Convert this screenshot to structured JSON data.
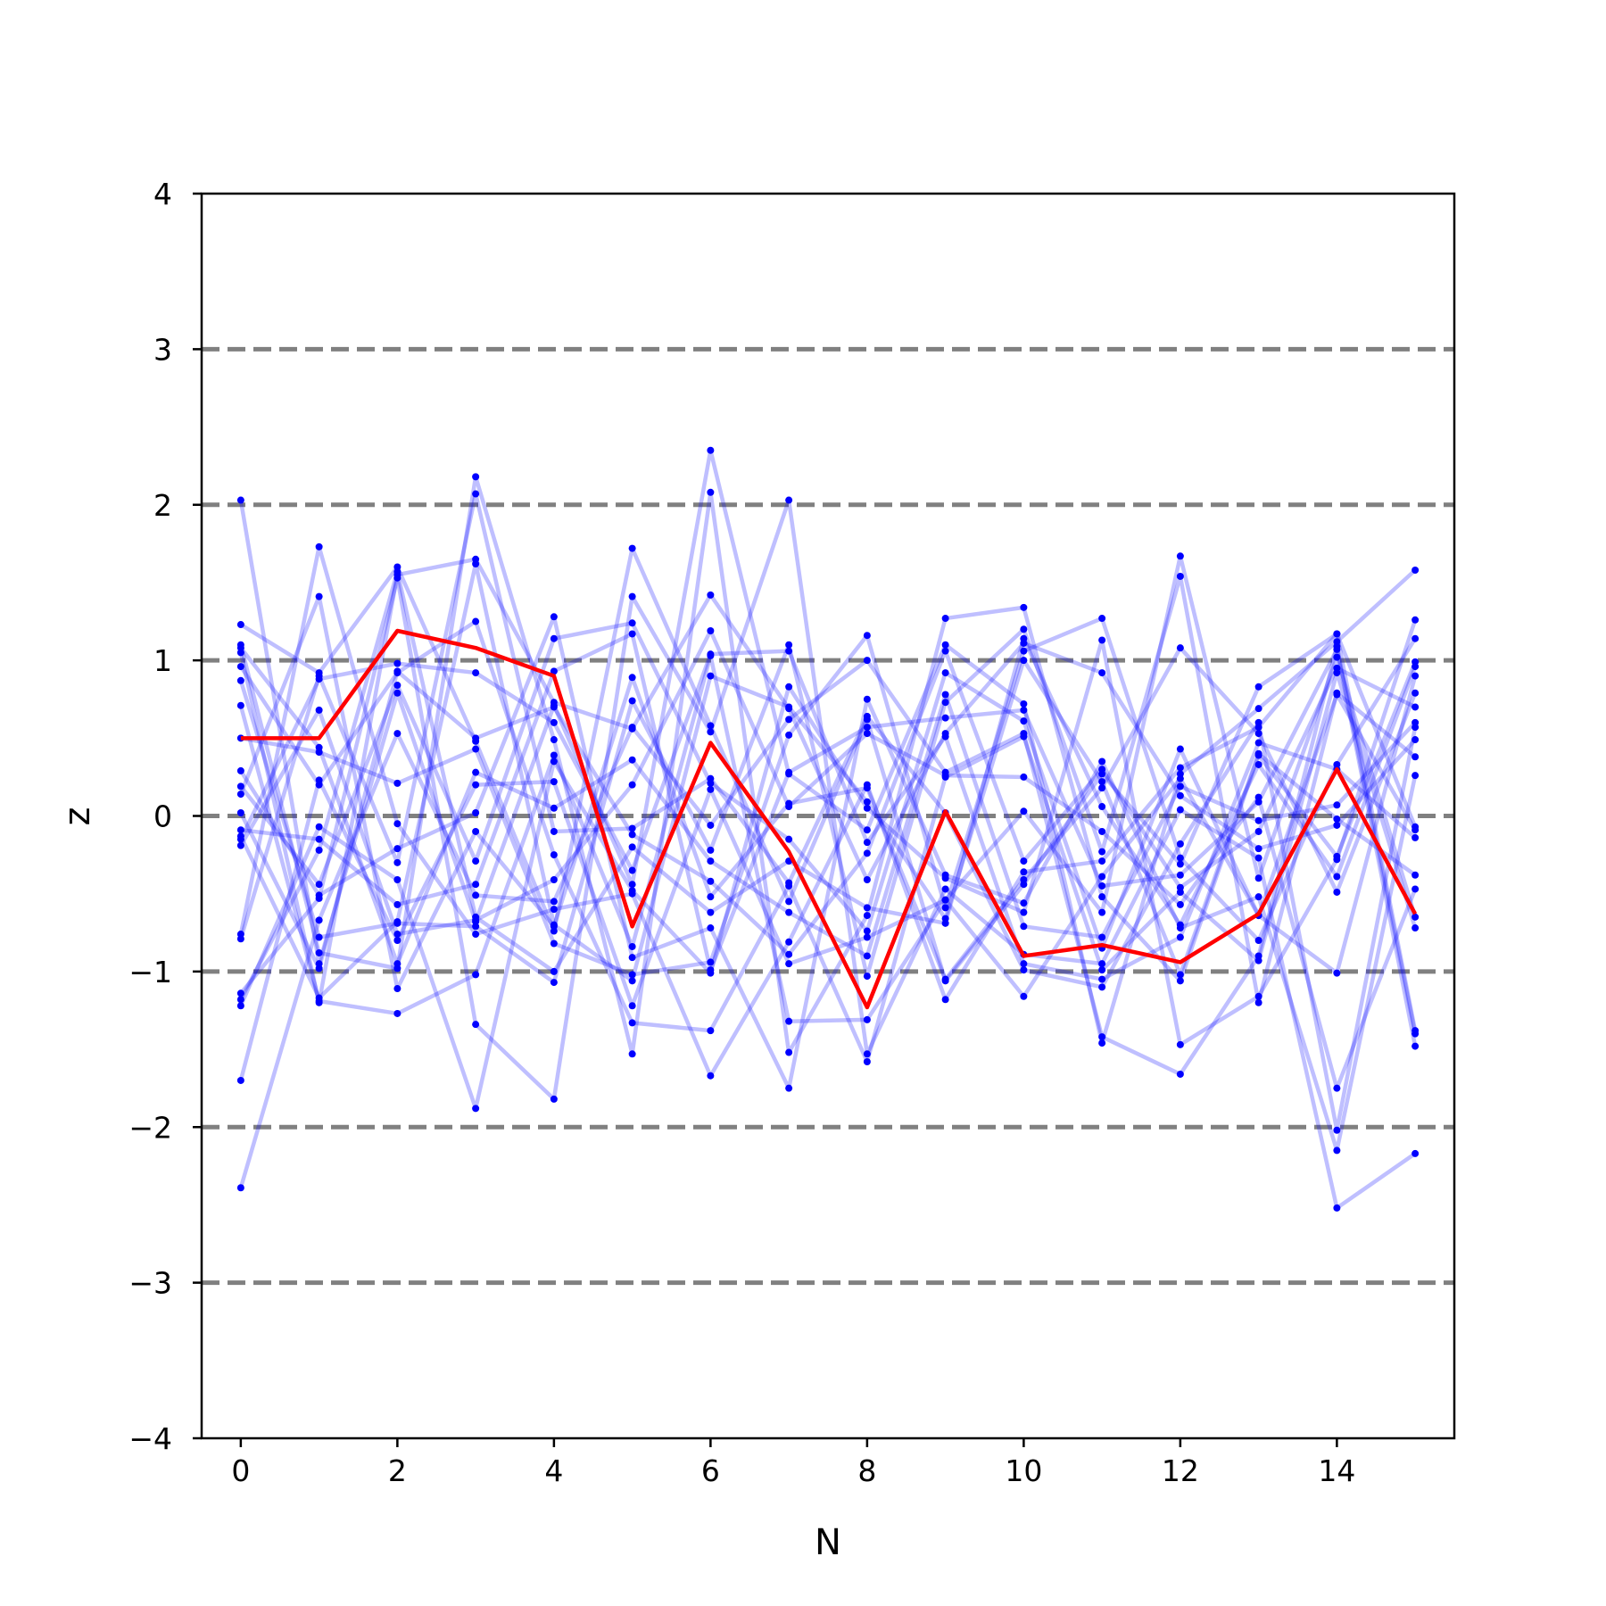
{
  "chart_data": {
    "type": "line",
    "title": "",
    "xlabel": "N",
    "ylabel": "z",
    "xlim": [
      -0.5,
      15.5
    ],
    "ylim": [
      -4,
      4
    ],
    "xticks": [
      0,
      2,
      4,
      6,
      8,
      10,
      12,
      14
    ],
    "xtick_labels": [
      "0",
      "2",
      "4",
      "6",
      "8",
      "10",
      "12",
      "14"
    ],
    "yticks": [
      -4,
      -3,
      -2,
      -1,
      0,
      1,
      2,
      3,
      4
    ],
    "ytick_labels": [
      "−4",
      "−3",
      "−2",
      "−1",
      "0",
      "1",
      "2",
      "3",
      "4"
    ],
    "reference_lines": {
      "y": [
        -3,
        -2,
        -1,
        0,
        1,
        2,
        3
      ],
      "style": "dashed",
      "color": "#808080"
    },
    "grid": false,
    "legend": "none",
    "x": [
      0,
      1,
      2,
      3,
      4,
      5,
      6,
      7,
      8,
      9,
      10,
      11,
      12,
      13,
      14,
      15
    ],
    "highlight_series": {
      "color": "#ff0000",
      "values": [
        0.5,
        0.5,
        1.19,
        1.08,
        0.9,
        -0.71,
        0.47,
        -0.23,
        -1.23,
        0.03,
        -0.9,
        -0.83,
        -0.94,
        -0.63,
        0.3,
        -0.63
      ]
    },
    "sample_series_style": {
      "color": "#0000ff",
      "line_opacity": 0.25,
      "markers": true
    },
    "sample_series": [
      [
        2.03,
        -0.95,
        0.79,
        -0.68,
        0.71,
        -0.44,
        2.35,
        0.27,
        -0.09,
        1.1,
        0.72,
        -1.46,
        0.27,
        0.69,
        1.12,
        1.58
      ],
      [
        1.23,
        0.92,
        1.6,
        0.48,
        -0.74,
        1.72,
        0.58,
        -0.55,
        0.62,
        -1.06,
        -0.44,
        0.27,
        -0.31,
        0.83,
        1.17,
        -0.07
      ],
      [
        1.1,
        -0.88,
        -0.98,
        2.18,
        0.49,
        -1.53,
        2.08,
        -1.52,
        -0.64,
        1.27,
        1.34,
        -0.52,
        -1.06,
        0.39,
        -0.26,
        0.99
      ],
      [
        1.05,
        -1.2,
        1.55,
        1.65,
        0.73,
        0.56,
        1.42,
        0.69,
        -0.41,
        0.53,
        1.11,
        0.92,
        0.13,
        -0.21,
        -0.06,
        0.49
      ],
      [
        0.96,
        0.2,
        0.92,
        1.25,
        -0.25,
        -1.33,
        -1.38,
        -0.45,
        -1.58,
        0.25,
        0.51,
        -0.99,
        -0.49,
        -0.93,
        0.92,
        -0.72
      ],
      [
        0.87,
        -0.78,
        -0.69,
        -0.71,
        -1.07,
        0.74,
        -0.22,
        1.1,
        -1.03,
        0.73,
        1.2,
        -0.23,
        1.54,
        -1.2,
        0.79,
        0.38
      ],
      [
        0.71,
        -1.19,
        -1.27,
        -1.02,
        0.39,
        -0.84,
        1.03,
        -1.32,
        -1.31,
        -0.54,
        0.03,
        -0.62,
        1.67,
        -0.4,
        1.02,
        -0.65
      ],
      [
        0.5,
        0.41,
        0.21,
        0.43,
        -0.82,
        -1.02,
        -0.94,
        0.52,
        1.16,
        -0.59,
        1.06,
        1.27,
        -0.27,
        -0.8,
        0.33,
        1.14
      ],
      [
        0.29,
        -0.51,
        -0.21,
        0.02,
        1.28,
        -0.91,
        -0.72,
        -1.75,
        0.75,
        -0.38,
        -0.56,
        0.35,
        -0.72,
        -0.52,
        -2.15,
        0.26
      ],
      [
        0.19,
        -0.44,
        0.84,
        -0.29,
        1.14,
        1.24,
        0.21,
        -0.15,
        -0.74,
        0.92,
        0.61,
        -0.85,
        0.43,
        -0.64,
        -1.01,
        0.9
      ],
      [
        0.14,
        1.41,
        -1.11,
        -0.1,
        -0.71,
        0.89,
        -0.52,
        0.08,
        0.18,
        -1.05,
        -0.41,
        0.18,
        1.08,
        0.53,
        -0.49,
        0.79
      ],
      [
        -0.09,
        -0.15,
        -0.57,
        -0.44,
        0.93,
        1.17,
        -0.99,
        0.28,
        0.57,
        0.63,
        0.68,
        -0.45,
        -0.38,
        0.09,
        1.07,
        -1.48
      ],
      [
        -0.15,
        0.88,
        0.98,
        0.92,
        0.6,
        -0.35,
        1.04,
        1.06,
        -0.17,
        0.51,
        -0.95,
        -1.05,
        -0.78,
        0.47,
        0.3,
        -0.14
      ],
      [
        -0.19,
        0.68,
        -0.76,
        -0.67,
        -0.41,
        0.2,
        1.19,
        0.06,
        0.53,
        0.26,
        0.25,
        -0.1,
        -0.57,
        0.12,
        -1.75,
        -0.47
      ],
      [
        -0.76,
        1.73,
        -0.05,
        -0.76,
        -0.6,
        -0.5,
        -1.67,
        -0.81,
        0.2,
        -1.18,
        -0.36,
        -0.29,
        0.31,
        0.57,
        1.17,
        -1.38
      ],
      [
        -0.79,
        0.9,
        -0.3,
        2.07,
        -0.1,
        -0.08,
        0.24,
        -0.43,
        0.64,
        0.02,
        -0.99,
        -1.1,
        -0.18,
        0.6,
        -2.02,
        0.57
      ],
      [
        -1.14,
        -0.53,
        1.53,
        -1.34,
        -1.82,
        1.41,
        0.54,
        2.03,
        -1.53,
        -0.47,
        -0.89,
        -0.95,
        0.04,
        -0.27,
        -2.52,
        -2.17
      ],
      [
        -1.18,
        -0.22,
        1.57,
        -0.65,
        -1.0,
        -0.2,
        -0.62,
        -0.29,
        -0.59,
        -0.69,
        1.14,
        0.06,
        -0.7,
        0.33,
        -0.39,
        0.96
      ],
      [
        -1.22,
        -0.07,
        -0.41,
        -1.88,
        0.35,
        -0.48,
        -1.01,
        0.83,
        0.05,
        -0.4,
        -0.62,
        1.13,
        -1.47,
        -1.16,
        -0.28,
        1.26
      ],
      [
        -1.7,
        0.23,
        -0.8,
        0.2,
        0.22,
        -1.22,
        0.17,
        -0.95,
        -0.78,
        -0.54,
        -1.16,
        -0.39,
        0.24,
        -0.64,
        0.78,
        -0.09
      ],
      [
        -2.39,
        -0.67,
        0.53,
        -0.51,
        -0.55,
        0.57,
        -0.06,
        0.62,
        1.0,
        0.28,
        0.53,
        -1.42,
        -1.66,
        -0.9,
        1.09,
        -1.4
      ],
      [
        0.02,
        -0.98,
        0.93,
        0.5,
        0.7,
        -0.12,
        -0.42,
        -0.89,
        -0.24,
        1.06,
        -0.29,
        0.3,
        -0.46,
        -0.1,
        0.95,
        0.7
      ],
      [
        -0.13,
        -1.17,
        -0.68,
        1.62,
        -0.7,
        -1.06,
        0.9,
        0.7,
        0.09,
        -0.66,
        1.0,
        0.22,
        -1.02,
        0.4,
        -0.02,
        -0.38
      ],
      [
        1.08,
        0.44,
        -0.95,
        0.28,
        0.05,
        0.36,
        -0.29,
        -0.62,
        -0.9,
        0.78,
        -0.71,
        -0.78,
        0.19,
        -0.03,
        0.07,
        0.6
      ]
    ]
  }
}
